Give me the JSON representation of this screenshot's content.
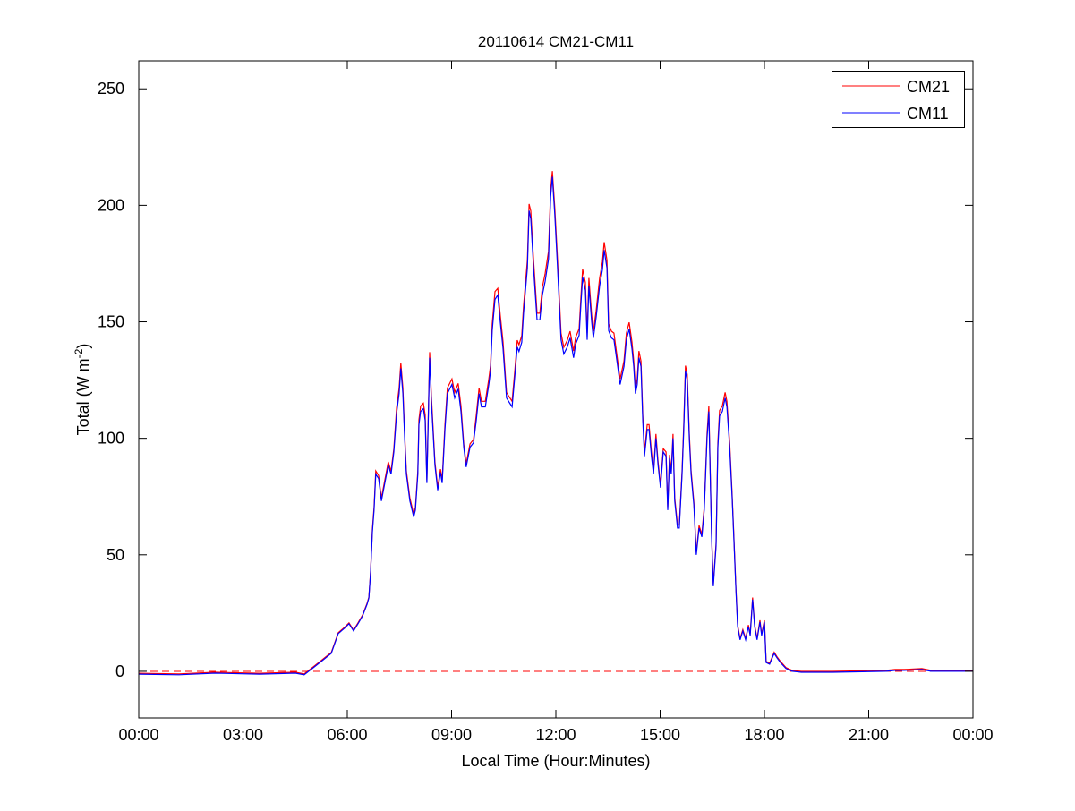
{
  "chart_data": {
    "type": "line",
    "title": "20110614 CM21-CM11",
    "xlabel": "Local Time (Hour:Minutes)",
    "ylabel": "Total (W m",
    "ylabel_superscript": "-2",
    "ylabel_suffix": ")",
    "xlim_hours": [
      0,
      24
    ],
    "ylim": [
      -20,
      262
    ],
    "xticks_hours": [
      0,
      3,
      6,
      9,
      12,
      15,
      18,
      21,
      24
    ],
    "xtick_labels": [
      "00:00",
      "03:00",
      "06:00",
      "09:00",
      "12:00",
      "15:00",
      "18:00",
      "21:00",
      "00:00"
    ],
    "yticks": [
      0,
      50,
      100,
      150,
      200,
      250
    ],
    "ytick_labels": [
      "0",
      "50",
      "100",
      "150",
      "200",
      "250"
    ],
    "grid": false,
    "legend_placement": "top-right",
    "reference_line": {
      "y": 0,
      "style": "dashed",
      "color": "#ff0000"
    },
    "x_hours": [
      0.0,
      1.16,
      2.19,
      3.48,
      4.51,
      4.76,
      5.02,
      5.28,
      5.54,
      5.74,
      5.92,
      6.05,
      6.18,
      6.31,
      6.44,
      6.57,
      6.62,
      6.67,
      6.72,
      6.77,
      6.82,
      6.9,
      6.98,
      7.08,
      7.18,
      7.26,
      7.34,
      7.42,
      7.49,
      7.54,
      7.6,
      7.65,
      7.7,
      7.8,
      7.91,
      7.96,
      8.03,
      8.06,
      8.11,
      8.19,
      8.24,
      8.29,
      8.37,
      8.42,
      8.52,
      8.6,
      8.68,
      8.73,
      8.81,
      8.88,
      9.01,
      9.09,
      9.19,
      9.27,
      9.35,
      9.42,
      9.53,
      9.63,
      9.71,
      9.79,
      9.86,
      9.97,
      10.07,
      10.12,
      10.17,
      10.25,
      10.33,
      10.4,
      10.48,
      10.58,
      10.66,
      10.74,
      10.82,
      10.89,
      10.94,
      11.02,
      11.07,
      11.18,
      11.23,
      11.28,
      11.36,
      11.41,
      11.46,
      11.54,
      11.61,
      11.69,
      11.79,
      11.85,
      11.9,
      11.97,
      12.05,
      12.15,
      12.23,
      12.33,
      12.41,
      12.51,
      12.57,
      12.67,
      12.72,
      12.77,
      12.85,
      12.9,
      12.95,
      13.03,
      13.08,
      13.16,
      13.26,
      13.34,
      13.39,
      13.47,
      13.52,
      13.6,
      13.67,
      13.78,
      13.85,
      13.96,
      14.03,
      14.11,
      14.19,
      14.24,
      14.29,
      14.34,
      14.39,
      14.45,
      14.5,
      14.55,
      14.63,
      14.68,
      14.75,
      14.81,
      14.88,
      14.94,
      15.01,
      15.09,
      15.17,
      15.22,
      15.27,
      15.32,
      15.37,
      15.42,
      15.5,
      15.55,
      15.63,
      15.68,
      15.73,
      15.78,
      15.84,
      15.89,
      15.97,
      16.04,
      16.12,
      16.2,
      16.27,
      16.35,
      16.4,
      16.48,
      16.53,
      16.61,
      16.66,
      16.71,
      16.79,
      16.87,
      16.92,
      17.0,
      17.07,
      17.12,
      17.18,
      17.23,
      17.3,
      17.38,
      17.46,
      17.54,
      17.59,
      17.66,
      17.72,
      17.79,
      17.87,
      17.92,
      18.0,
      18.05,
      18.15,
      18.28,
      18.36,
      18.46,
      18.62,
      18.8,
      19.06,
      19.96,
      21.5,
      21.76,
      22.02,
      22.53,
      22.79,
      24.0
    ],
    "series": [
      {
        "name": "CM21",
        "color": "#ff0000",
        "values": [
          -1.2,
          -1.5,
          -0.8,
          -1.2,
          -0.8,
          -1.5,
          1.5,
          4.6,
          7.7,
          16.2,
          18.5,
          20.4,
          17.3,
          20.4,
          23.8,
          28.8,
          31.5,
          42.3,
          60.4,
          70.0,
          85.6,
          83.6,
          74.0,
          81.7,
          89.5,
          85.5,
          95.2,
          112.8,
          121.2,
          132.0,
          121.2,
          101.5,
          85.6,
          74.0,
          67.0,
          70.0,
          85.6,
          107.5,
          113.5,
          114.7,
          109.7,
          81.7,
          136.6,
          117.4,
          89.5,
          78.6,
          86.4,
          81.7,
          105.5,
          121.2,
          125.1,
          119.3,
          123.2,
          113.5,
          97.2,
          88.7,
          97.2,
          99.1,
          109.7,
          121.2,
          115.5,
          115.5,
          125.1,
          130.8,
          148.7,
          162.6,
          164.0,
          152.5,
          141.0,
          119.3,
          117.4,
          115.5,
          128.9,
          141.7,
          139.8,
          143.7,
          156.3,
          176.1,
          200.2,
          197.2,
          176.1,
          164.5,
          153.3,
          153.3,
          164.5,
          170.3,
          179.9,
          206.3,
          214.3,
          198.7,
          176.1,
          144.8,
          138.7,
          141.7,
          145.6,
          137.1,
          142.9,
          146.7,
          160.2,
          172.2,
          166.5,
          144.8,
          168.4,
          152.5,
          145.6,
          154.4,
          168.4,
          175.3,
          183.8,
          176.1,
          148.7,
          145.6,
          144.8,
          132.8,
          125.1,
          132.8,
          144.8,
          149.4,
          141.0,
          132.8,
          121.2,
          125.1,
          137.1,
          132.8,
          109.7,
          93.8,
          105.5,
          105.5,
          93.8,
          85.6,
          101.5,
          89.5,
          79.8,
          95.2,
          93.8,
          70.2,
          92.5,
          85.6,
          101.5,
          74.1,
          62.5,
          62.5,
          85.6,
          105.5,
          130.8,
          127.0,
          101.5,
          85.6,
          72.2,
          50.6,
          62.2,
          58.4,
          70.2,
          101.5,
          113.5,
          58.4,
          37.0,
          54.6,
          97.7,
          111.6,
          113.5,
          119.3,
          115.5,
          97.7,
          76.0,
          58.4,
          35.1,
          19.5,
          13.7,
          17.5,
          13.7,
          19.5,
          15.6,
          31.3,
          19.5,
          13.7,
          21.5,
          15.6,
          21.5,
          3.9,
          3.1,
          7.8,
          5.9,
          3.9,
          1.2,
          0.0,
          -0.4,
          -0.4,
          0.0,
          0.4,
          0.4,
          0.8,
          0.0,
          0.0
        ]
      },
      {
        "name": "CM11",
        "color": "#0000ff",
        "values": [
          -1.2,
          -1.5,
          -0.8,
          -1.2,
          -0.8,
          -1.5,
          1.5,
          4.6,
          7.7,
          16.2,
          18.5,
          20.4,
          17.3,
          20.4,
          23.8,
          28.8,
          31.5,
          42.3,
          59.6,
          69.2,
          84.6,
          82.7,
          73.1,
          80.8,
          88.5,
          84.6,
          94.2,
          110.8,
          119.2,
          130.0,
          119.2,
          100.0,
          84.6,
          73.1,
          66.2,
          69.2,
          84.6,
          105.8,
          111.5,
          112.7,
          107.7,
          80.8,
          134.6,
          115.4,
          88.5,
          77.7,
          85.4,
          80.8,
          103.8,
          119.2,
          123.1,
          117.3,
          121.2,
          111.5,
          96.2,
          87.7,
          96.2,
          98.1,
          107.7,
          119.2,
          113.5,
          113.5,
          123.1,
          128.8,
          146.2,
          159.6,
          161.5,
          150.0,
          138.5,
          117.3,
          115.4,
          113.5,
          126.9,
          139.2,
          137.3,
          141.2,
          153.8,
          173.1,
          197.7,
          194.2,
          173.1,
          161.5,
          150.8,
          150.8,
          161.5,
          167.3,
          176.9,
          203.8,
          212.3,
          196.2,
          173.1,
          142.3,
          136.2,
          139.2,
          143.1,
          134.6,
          140.4,
          144.2,
          157.7,
          169.2,
          163.5,
          142.3,
          165.4,
          150.0,
          143.1,
          151.9,
          165.4,
          172.3,
          180.8,
          173.1,
          146.2,
          143.1,
          142.3,
          130.8,
          123.1,
          130.8,
          142.3,
          146.9,
          138.5,
          130.8,
          119.2,
          123.1,
          134.6,
          130.8,
          107.7,
          92.3,
          103.8,
          103.8,
          92.3,
          84.6,
          100.0,
          88.5,
          78.8,
          94.2,
          92.3,
          69.2,
          91.5,
          84.6,
          100.0,
          73.1,
          61.5,
          61.5,
          84.6,
          103.8,
          128.8,
          125.0,
          100.0,
          84.6,
          71.2,
          50.0,
          61.5,
          57.7,
          69.2,
          100.0,
          111.5,
          57.7,
          36.5,
          53.8,
          96.2,
          109.6,
          111.5,
          117.3,
          113.5,
          96.2,
          75.0,
          57.7,
          34.6,
          19.2,
          13.5,
          17.3,
          13.5,
          19.2,
          15.4,
          30.8,
          19.2,
          13.5,
          21.2,
          15.4,
          21.2,
          3.8,
          3.1,
          7.7,
          5.8,
          3.8,
          1.2,
          0.0,
          -0.4,
          -0.4,
          0.0,
          0.4,
          0.4,
          0.8,
          0.0,
          0.0
        ]
      }
    ]
  }
}
